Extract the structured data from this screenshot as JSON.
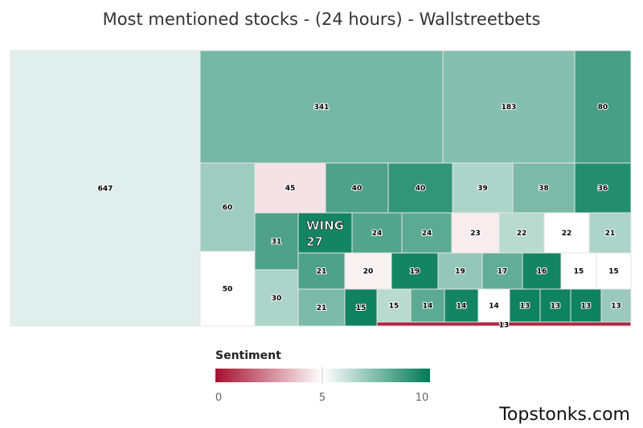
{
  "chart_data": {
    "type": "treemap",
    "title": "Most mentioned stocks - (24 hours) - Wallstreetbets",
    "highlight_label": "WING",
    "legend": {
      "title": "Sentiment",
      "ticks": [
        "0",
        "5",
        "10"
      ],
      "min": 0,
      "mid": 5,
      "max": 10,
      "colors": {
        "low": "#a50f2d",
        "mid": "#ffffff",
        "high": "#007a55"
      }
    },
    "cells": [
      {
        "value": 647,
        "sentiment": 5.6
      },
      {
        "value": 341,
        "sentiment": 7.7
      },
      {
        "value": 183,
        "sentiment": 7.4
      },
      {
        "value": 80,
        "sentiment": 8.6
      },
      {
        "value": 60,
        "sentiment": 6.9
      },
      {
        "value": 45,
        "sentiment": 4.4
      },
      {
        "value": 40,
        "sentiment": 8.5
      },
      {
        "value": 40,
        "sentiment": 9.0
      },
      {
        "value": 39,
        "sentiment": 6.6
      },
      {
        "value": 38,
        "sentiment": 7.6
      },
      {
        "value": 36,
        "sentiment": 9.3
      },
      {
        "value": 50,
        "sentiment": 5.0
      },
      {
        "value": 31,
        "sentiment": 8.5
      },
      {
        "value": 27,
        "sentiment": 9.6,
        "label": "WING"
      },
      {
        "value": 24,
        "sentiment": 8.4
      },
      {
        "value": 24,
        "sentiment": 8.2
      },
      {
        "value": 23,
        "sentiment": 4.6
      },
      {
        "value": 22,
        "sentiment": 6.4
      },
      {
        "value": 22,
        "sentiment": 5.0
      },
      {
        "value": 21,
        "sentiment": 6.6
      },
      {
        "value": 30,
        "sentiment": 6.6
      },
      {
        "value": 21,
        "sentiment": 8.5
      },
      {
        "value": 20,
        "sentiment": 4.7
      },
      {
        "value": 19,
        "sentiment": 9.6
      },
      {
        "value": 19,
        "sentiment": 7.1
      },
      {
        "value": 17,
        "sentiment": 8.1
      },
      {
        "value": 16,
        "sentiment": 9.6
      },
      {
        "value": 15,
        "sentiment": 5.0
      },
      {
        "value": 15,
        "sentiment": 5.0
      },
      {
        "value": 21,
        "sentiment": 7.6
      },
      {
        "value": 15,
        "sentiment": 9.7
      },
      {
        "value": 15,
        "sentiment": 6.4
      },
      {
        "value": 14,
        "sentiment": 8.2
      },
      {
        "value": 14,
        "sentiment": 9.6
      },
      {
        "value": 14,
        "sentiment": 5.0
      },
      {
        "value": 13,
        "sentiment": 9.7
      },
      {
        "value": 13,
        "sentiment": 9.7
      },
      {
        "value": 13,
        "sentiment": 9.7
      },
      {
        "value": 13,
        "sentiment": 7.0
      },
      {
        "value": 13,
        "sentiment": 0.5
      }
    ]
  },
  "footer": {
    "brand": "Topstonks.com"
  }
}
